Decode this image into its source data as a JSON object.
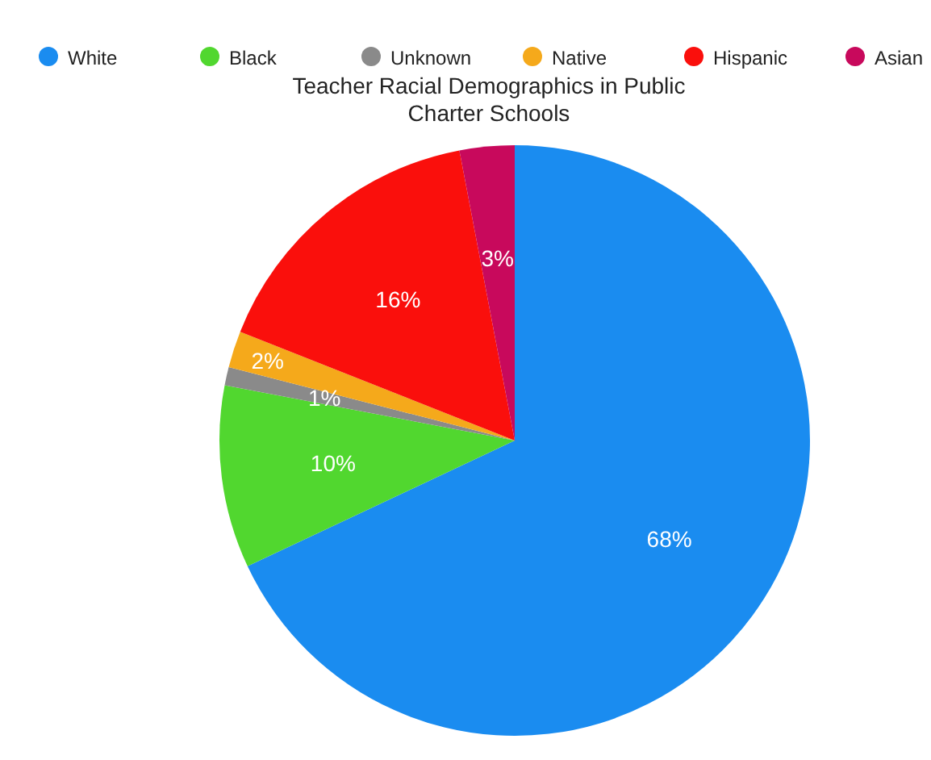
{
  "chart_data": {
    "type": "pie",
    "title": "Teacher Racial Demographics in Public Charter Schools",
    "categories": [
      "White",
      "Black",
      "Unknown",
      "Native",
      "Hispanic",
      "Asian"
    ],
    "values": [
      68,
      10,
      1,
      2,
      16,
      3
    ],
    "colors": [
      "#1a8cf0",
      "#51d72f",
      "#8a8a8a",
      "#f5a91b",
      "#fa0f0c",
      "#c8095c"
    ],
    "value_labels": [
      "68%",
      "10%",
      "1%",
      "2%",
      "16%",
      "3%"
    ],
    "legend": "top"
  }
}
